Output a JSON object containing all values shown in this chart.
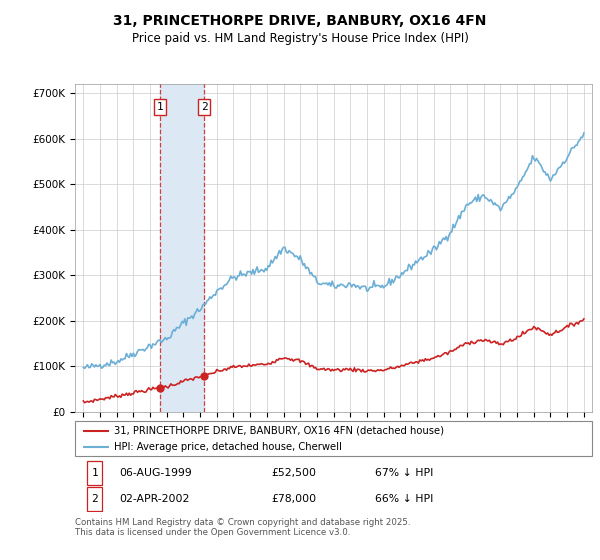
{
  "title": "31, PRINCETHORPE DRIVE, BANBURY, OX16 4FN",
  "subtitle": "Price paid vs. HM Land Registry's House Price Index (HPI)",
  "legend_line1": "31, PRINCETHORPE DRIVE, BANBURY, OX16 4FN (detached house)",
  "legend_line2": "HPI: Average price, detached house, Cherwell",
  "transaction1_date": "06-AUG-1999",
  "transaction1_price": "£52,500",
  "transaction1_hpi": "67% ↓ HPI",
  "transaction2_date": "02-APR-2002",
  "transaction2_price": "£78,000",
  "transaction2_hpi": "66% ↓ HPI",
  "footnote": "Contains HM Land Registry data © Crown copyright and database right 2025.\nThis data is licensed under the Open Government Licence v3.0.",
  "hpi_color": "#6baed6",
  "price_color": "#cc2222",
  "highlight_color": "#dce9f5",
  "marker1_date_x": 1999.58,
  "marker2_date_x": 2002.25,
  "marker1_price": 52500,
  "marker2_price": 78000,
  "ylim_max": 720000,
  "xlim_min": 1994.5,
  "xlim_max": 2025.5,
  "xticks": [
    1995,
    1996,
    1997,
    1998,
    1999,
    2000,
    2001,
    2002,
    2003,
    2004,
    2005,
    2006,
    2007,
    2008,
    2009,
    2010,
    2011,
    2012,
    2013,
    2014,
    2015,
    2016,
    2017,
    2018,
    2019,
    2020,
    2021,
    2022,
    2023,
    2024,
    2025
  ],
  "yticks": [
    0,
    100000,
    200000,
    300000,
    400000,
    500000,
    600000,
    700000
  ]
}
